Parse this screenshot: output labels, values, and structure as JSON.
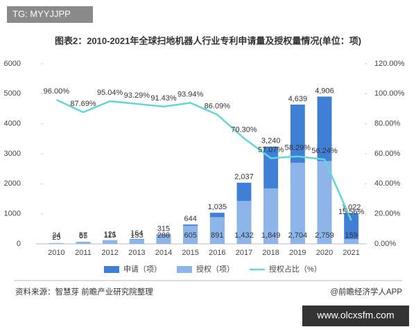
{
  "watermark_top": "TG: MYYJJPP",
  "watermark_bottom": "www.olcxsfm.com",
  "source": "资料来源：智慧芽 前瞻产业研究院整理",
  "credit": "@前瞻经济学人APP",
  "chart_data": {
    "type": "bar",
    "title": "图表2：2010-2021年全球扫地机器人行业专利申请量及授权量情况(单位：项)",
    "categories": [
      "2010",
      "2011",
      "2012",
      "2013",
      "2014",
      "2015",
      "2016",
      "2017",
      "2018",
      "2019",
      "2020",
      "2021"
    ],
    "series": [
      {
        "name": "申请（项）",
        "color": "#3f7fd6",
        "values": [
          25,
          65,
          121,
          164,
          315,
          644,
          1035,
          2037,
          3240,
          4639,
          4906,
          1022
        ],
        "value_labels": [
          "25",
          "65",
          "121",
          "164",
          "315",
          "644",
          "1,035",
          "2,037",
          "3,240",
          "4,639",
          "4,906",
          "1,022"
        ]
      },
      {
        "name": "授权（项）",
        "color": "#8db5ea",
        "values": [
          24,
          57,
          115,
          153,
          288,
          605,
          891,
          1432,
          1849,
          2704,
          2759,
          159
        ],
        "value_labels": [
          "24",
          "57",
          "115",
          "153",
          "288",
          "605",
          "891",
          "1,432",
          "1,849",
          "2,704",
          "2,759",
          "159"
        ]
      },
      {
        "name": "授权占比（%）",
        "color": "#62d6d8",
        "axis": "y2",
        "type": "line",
        "values": [
          96.0,
          87.69,
          95.04,
          93.29,
          91.43,
          93.94,
          86.09,
          70.3,
          57.07,
          58.29,
          56.24,
          15.56
        ],
        "value_labels": [
          "96.00%",
          "87.69%",
          "95.04%",
          "93.29%",
          "91.43%",
          "93.94%",
          "86.09%",
          "70.30%",
          "57.07%",
          "58.29%",
          "56.24%",
          "15.56%"
        ]
      }
    ],
    "ylim": [
      0,
      6000
    ],
    "yticks": [
      0,
      1000,
      2000,
      3000,
      4000,
      5000,
      6000
    ],
    "y2lim": [
      0,
      120
    ],
    "y2ticks": [
      {
        "value": 0,
        "label": "0.00%"
      },
      {
        "value": 20,
        "label": "20.00%"
      },
      {
        "value": 40,
        "label": "40.00%"
      },
      {
        "value": 60,
        "label": "60.00%"
      },
      {
        "value": 80,
        "label": "80.00%"
      },
      {
        "value": 100,
        "label": "100.00%"
      },
      {
        "value": 120,
        "label": "120.00%"
      }
    ],
    "grid": false,
    "legend": "bottom"
  }
}
